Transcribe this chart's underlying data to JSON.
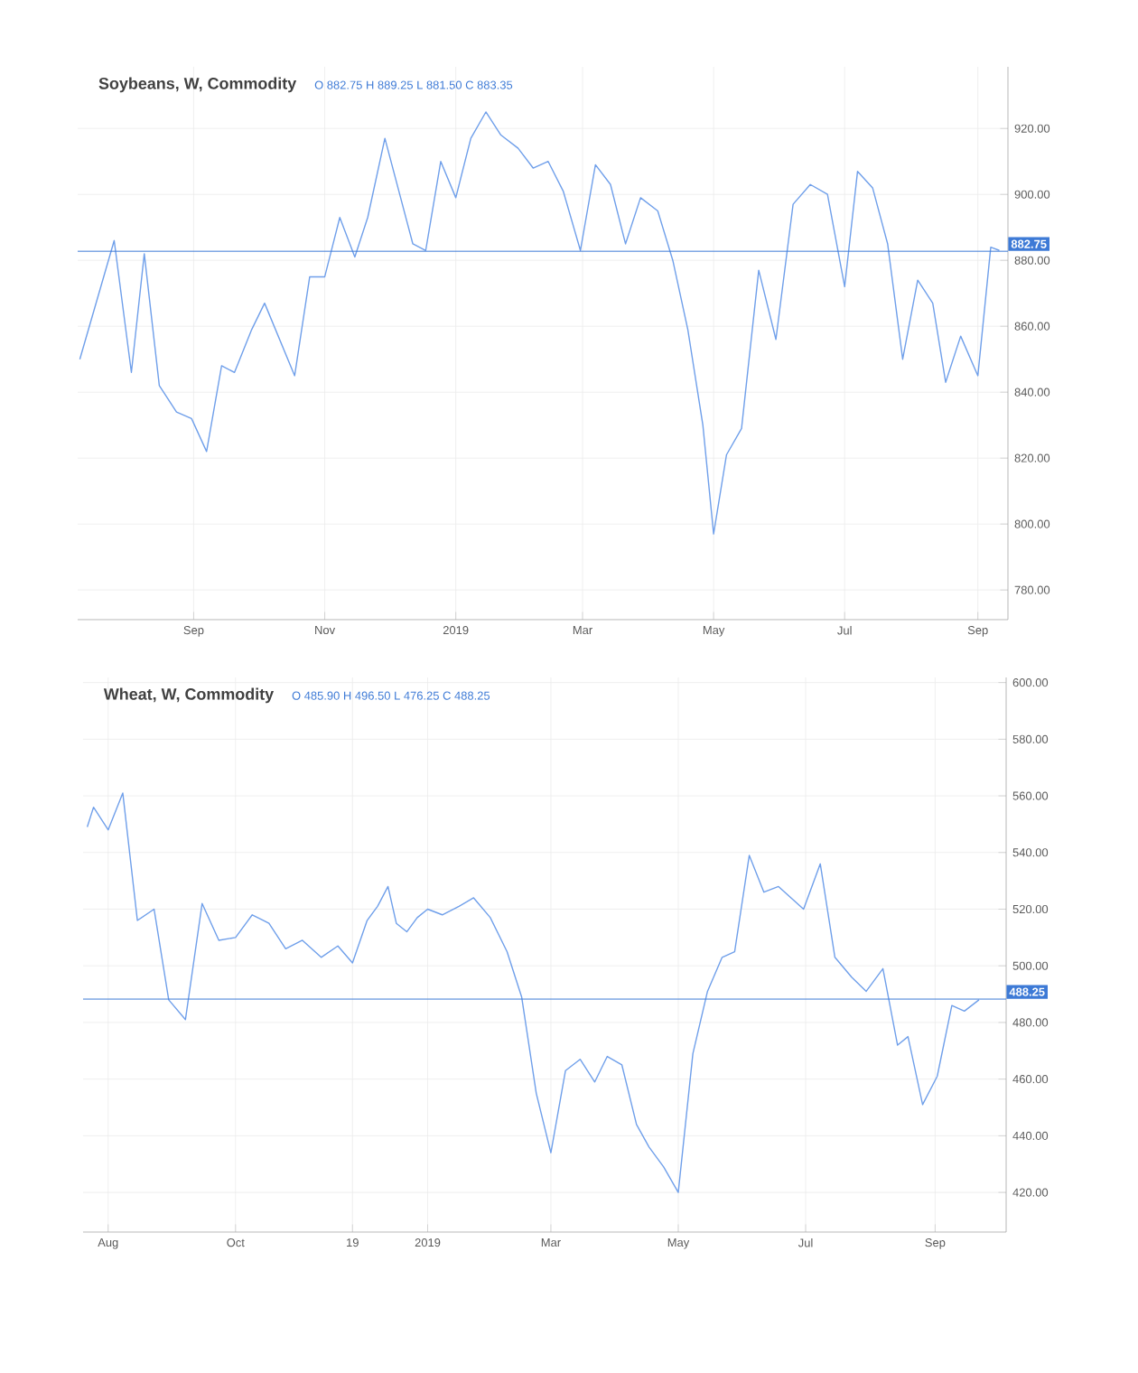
{
  "chart_data": [
    {
      "type": "line",
      "title": "Soybeans, W, Commodity",
      "subtitle": "O 882.75 H 889.25 L 881.50 C 883.35",
      "color": "#6f9fea",
      "grid": true,
      "x": [
        "2018-07-10",
        "2018-07-26",
        "2018-08-03",
        "2018-08-09",
        "2018-08-16",
        "2018-08-24",
        "2018-08-31",
        "2018-09-07",
        "2018-09-14",
        "2018-09-20",
        "2018-09-28",
        "2018-10-04",
        "2018-10-18",
        "2018-10-25",
        "2018-11-01",
        "2018-11-08",
        "2018-11-15",
        "2018-11-21",
        "2018-11-29",
        "2018-12-12",
        "2018-12-18",
        "2018-12-25",
        "2019-01-01",
        "2019-01-08",
        "2019-01-15",
        "2019-01-22",
        "2019-01-30",
        "2019-02-06",
        "2019-02-13",
        "2019-02-20",
        "2019-02-28",
        "2019-03-07",
        "2019-03-14",
        "2019-03-21",
        "2019-03-28",
        "2019-04-05",
        "2019-04-12",
        "2019-04-19",
        "2019-04-26",
        "2019-05-01",
        "2019-05-07",
        "2019-05-14",
        "2019-05-22",
        "2019-05-30",
        "2019-06-07",
        "2019-06-15",
        "2019-06-23",
        "2019-07-01",
        "2019-07-07",
        "2019-07-14",
        "2019-07-21",
        "2019-07-28",
        "2019-08-04",
        "2019-08-11",
        "2019-08-17",
        "2019-08-24",
        "2019-09-01",
        "2019-09-07",
        "2019-09-11"
      ],
      "values": [
        850,
        886,
        846,
        882,
        842,
        834,
        832,
        822,
        848,
        846,
        859,
        867,
        845,
        875,
        875,
        893,
        881,
        893,
        917,
        885,
        883,
        910,
        899,
        917,
        925,
        918,
        914,
        908,
        910,
        901,
        883,
        909,
        903,
        885,
        899,
        895,
        880,
        859,
        830,
        797,
        821,
        829,
        877,
        856,
        897,
        903,
        900,
        872,
        907,
        902,
        885,
        850,
        874,
        867,
        843,
        857,
        845,
        884,
        883
      ],
      "xlim": [
        "2018-07-09",
        "2019-09-15"
      ],
      "ylim": [
        771,
        938.7
      ],
      "xticks": [
        {
          "value": "2018-09-01",
          "label": "Sep"
        },
        {
          "value": "2018-11-01",
          "label": "Nov"
        },
        {
          "value": "2019-01-01",
          "label": "2019"
        },
        {
          "value": "2019-03-01",
          "label": "Mar"
        },
        {
          "value": "2019-05-01",
          "label": "May"
        },
        {
          "value": "2019-07-01",
          "label": "Jul"
        },
        {
          "value": "2019-09-01",
          "label": "Sep"
        }
      ],
      "yticks": [
        {
          "value": 780,
          "label": "780.00"
        },
        {
          "value": 800,
          "label": "800.00"
        },
        {
          "value": 820,
          "label": "820.00"
        },
        {
          "value": 840,
          "label": "840.00"
        },
        {
          "value": 860,
          "label": "860.00"
        },
        {
          "value": 880,
          "label": "880.00"
        },
        {
          "value": 900,
          "label": "900.00"
        },
        {
          "value": 920,
          "label": "920.00"
        }
      ],
      "ref_lines": [
        {
          "axis": "y",
          "value": 882.75,
          "label": "882.75",
          "color": "#3d7ad6"
        }
      ]
    },
    {
      "type": "line",
      "title": "Wheat, W, Commodity",
      "subtitle": "O 485.90 H 496.50 L 476.25 C 488.25",
      "color": "#6f9fea",
      "grid": true,
      "x": [
        "2018-07-22",
        "2018-07-25",
        "2018-08-01",
        "2018-08-08",
        "2018-08-15",
        "2018-08-23",
        "2018-08-30",
        "2018-09-07",
        "2018-09-15",
        "2018-09-23",
        "2018-10-01",
        "2018-10-09",
        "2018-10-17",
        "2018-10-25",
        "2018-11-02",
        "2018-11-11",
        "2018-11-19",
        "2018-11-26",
        "2018-12-03",
        "2018-12-08",
        "2018-12-13",
        "2018-12-17",
        "2018-12-22",
        "2018-12-27",
        "2019-01-01",
        "2019-01-08",
        "2019-01-16",
        "2019-01-23",
        "2019-01-31",
        "2019-02-08",
        "2019-02-15",
        "2019-02-22",
        "2019-03-01",
        "2019-03-08",
        "2019-03-15",
        "2019-03-22",
        "2019-03-28",
        "2019-04-04",
        "2019-04-11",
        "2019-04-17",
        "2019-04-24",
        "2019-05-01",
        "2019-05-08",
        "2019-05-15",
        "2019-05-22",
        "2019-05-28",
        "2019-06-04",
        "2019-06-11",
        "2019-06-18",
        "2019-06-30",
        "2019-07-08",
        "2019-07-15",
        "2019-07-23",
        "2019-07-30",
        "2019-08-07",
        "2019-08-14",
        "2019-08-19",
        "2019-08-26",
        "2019-09-02",
        "2019-09-09",
        "2019-09-15",
        "2019-09-22"
      ],
      "values": [
        549,
        556,
        548,
        561,
        516,
        520,
        488,
        481,
        522,
        509,
        510,
        518,
        515,
        506,
        509,
        503,
        507,
        501,
        516,
        521,
        528,
        515,
        512,
        517,
        520,
        518,
        521,
        524,
        517,
        505,
        489,
        455,
        434,
        463,
        467,
        459,
        468,
        465,
        444,
        436,
        429,
        420,
        469,
        491,
        503,
        505,
        539,
        526,
        528,
        520,
        536,
        503,
        496,
        491,
        499,
        472,
        475,
        451,
        461,
        486,
        484,
        488
      ],
      "xlim": [
        "2018-07-20",
        "2019-10-05"
      ],
      "ylim": [
        406,
        601.8
      ],
      "xticks": [
        {
          "value": "2018-08-01",
          "label": "Aug"
        },
        {
          "value": "2018-10-01",
          "label": "Oct"
        },
        {
          "value": "2018-11-26",
          "label": "19"
        },
        {
          "value": "2019-01-01",
          "label": "2019"
        },
        {
          "value": "2019-03-01",
          "label": "Mar"
        },
        {
          "value": "2019-05-01",
          "label": "May"
        },
        {
          "value": "2019-07-01",
          "label": "Jul"
        },
        {
          "value": "2019-09-01",
          "label": "Sep"
        }
      ],
      "yticks": [
        {
          "value": 420,
          "label": "420.00"
        },
        {
          "value": 440,
          "label": "440.00"
        },
        {
          "value": 460,
          "label": "460.00"
        },
        {
          "value": 480,
          "label": "480.00"
        },
        {
          "value": 500,
          "label": "500.00"
        },
        {
          "value": 520,
          "label": "520.00"
        },
        {
          "value": 540,
          "label": "540.00"
        },
        {
          "value": 560,
          "label": "560.00"
        },
        {
          "value": 580,
          "label": "580.00"
        },
        {
          "value": 600,
          "label": "600.00"
        }
      ],
      "ref_lines": [
        {
          "axis": "y",
          "value": 488.25,
          "label": "488.25",
          "color": "#3d7ad6"
        }
      ]
    }
  ]
}
